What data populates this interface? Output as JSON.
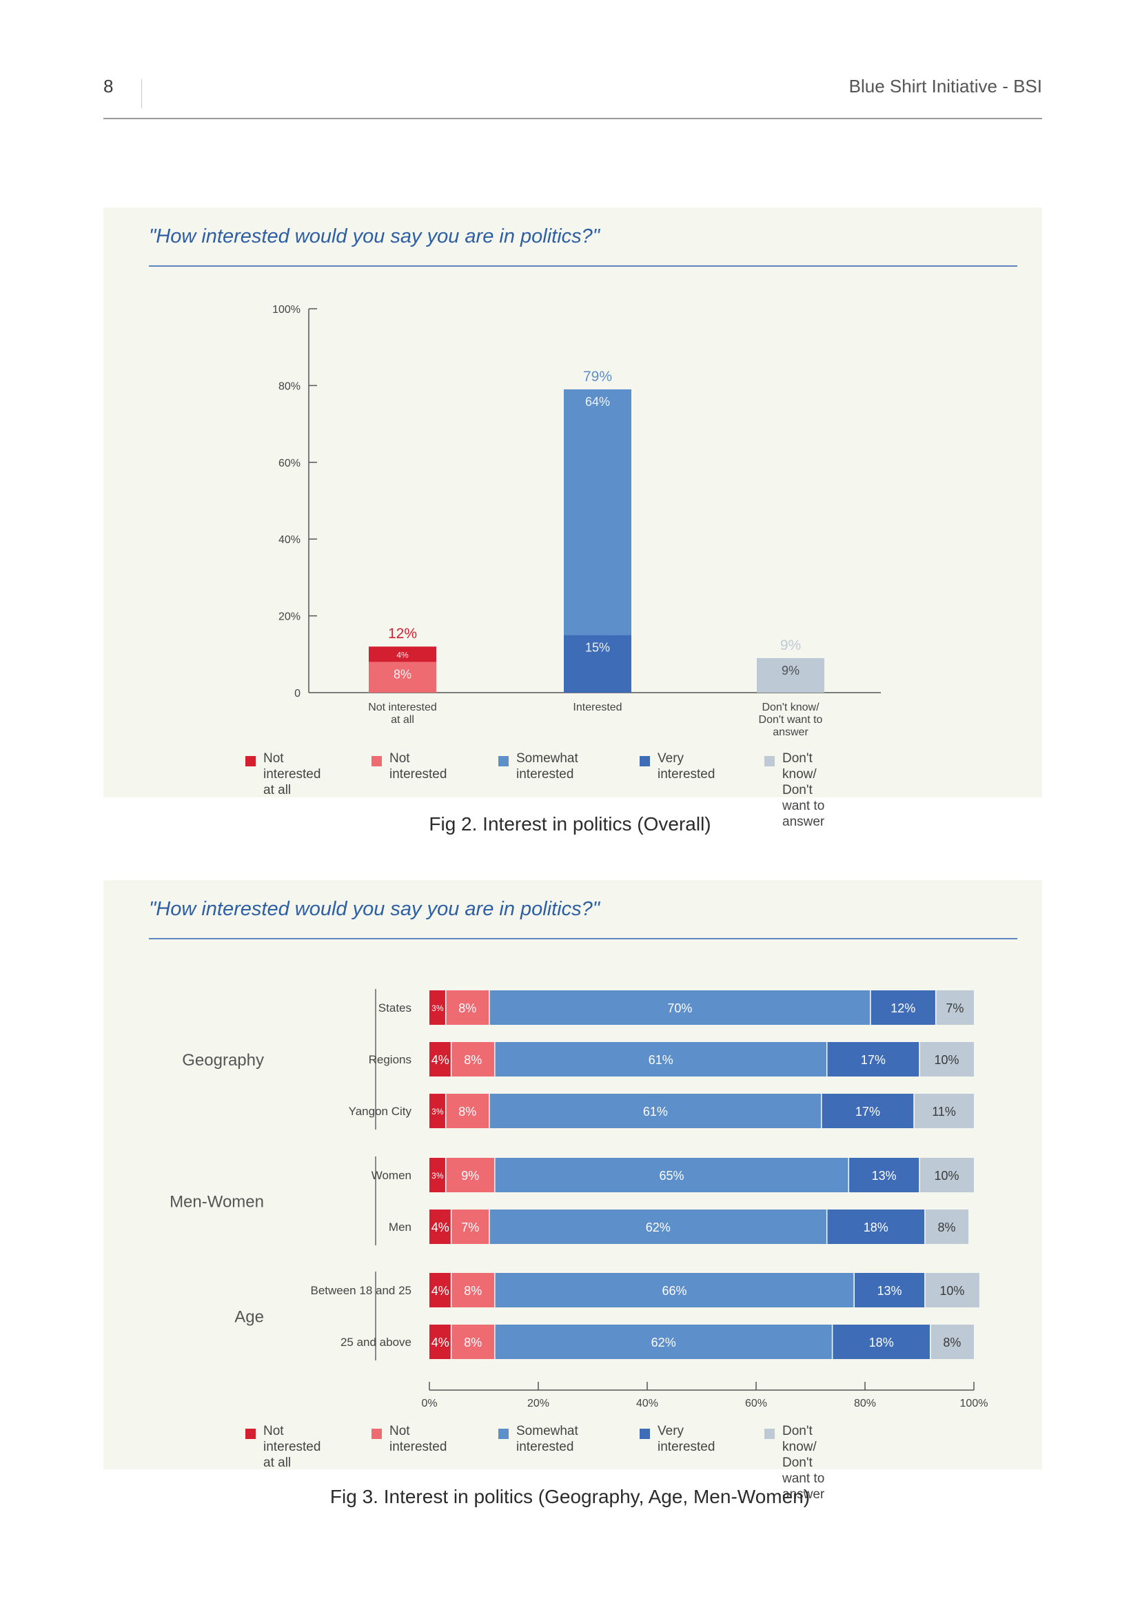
{
  "page": {
    "number": "8",
    "header_title": "Blue Shirt Initiative - BSI"
  },
  "colors": {
    "not_at_all": "#d41f30",
    "not_interested": "#ef6b72",
    "somewhat": "#5d8fca",
    "very": "#3f6cb6",
    "dont_know": "#bdcad6",
    "panel_bg": "#f5f6ee",
    "question": "#2d5fa5"
  },
  "figures": [
    {
      "question": "\"How interested would you say you are in politics?\"",
      "caption": "Fig 2. Interest in politics (Overall)"
    },
    {
      "question": "\"How interested would you say you are in politics?\"",
      "caption": "Fig 3. Interest in politics (Geography, Age, Men-Women)"
    }
  ],
  "legend": [
    {
      "key": "not_at_all",
      "label": "Not interested\nat all"
    },
    {
      "key": "not_interested",
      "label": "Not\ninterested"
    },
    {
      "key": "somewhat",
      "label": "Somewhat interested"
    },
    {
      "key": "very",
      "label": "Very interested"
    },
    {
      "key": "dont_know",
      "label": "Don't know/ Don't\nwant to answer"
    }
  ],
  "chart_data": [
    {
      "type": "bar",
      "stacked": true,
      "orientation": "vertical",
      "title": "\"How interested would you say you are in politics?\"",
      "categories": [
        "Not interested\nat all",
        "Interested",
        "Don't know/\nDon't want to\nanswer"
      ],
      "ylim": [
        0,
        100
      ],
      "yticks": [
        "0",
        "20%",
        "40%",
        "60%",
        "80%",
        "100%"
      ],
      "ytick_values": [
        0,
        20,
        40,
        60,
        80,
        100
      ],
      "bars": [
        {
          "total_label": "12%",
          "total_color": "not_at_all",
          "segments": [
            {
              "key": "not_interested",
              "value": 8,
              "label": "8%"
            },
            {
              "key": "not_at_all",
              "value": 4,
              "label": "4%"
            }
          ]
        },
        {
          "total_label": "79%",
          "total_color": "somewhat",
          "segments": [
            {
              "key": "very",
              "value": 15,
              "label": "15%"
            },
            {
              "key": "somewhat",
              "value": 64,
              "label": "64%"
            }
          ]
        },
        {
          "total_label": "9%",
          "total_color": "dont_know",
          "segments": [
            {
              "key": "dont_know",
              "value": 9,
              "label": "9%"
            }
          ]
        }
      ],
      "grid": false
    },
    {
      "type": "bar",
      "stacked": true,
      "orientation": "horizontal",
      "title": "\"How interested would you say you are in politics?\"",
      "xlim": [
        0,
        100
      ],
      "xticks": [
        "0%",
        "20%",
        "40%",
        "60%",
        "80%",
        "100%"
      ],
      "xtick_values": [
        0,
        20,
        40,
        60,
        80,
        100
      ],
      "series_keys": [
        "not_at_all",
        "not_interested",
        "somewhat",
        "very",
        "dont_know"
      ],
      "groups": [
        {
          "name": "Geography",
          "rows": [
            {
              "label": "States",
              "values": [
                3,
                8,
                70,
                12,
                7
              ],
              "labels": [
                "3%",
                "8%",
                "70%",
                "12%",
                "7%"
              ]
            },
            {
              "label": "Regions",
              "values": [
                4,
                8,
                61,
                17,
                10
              ],
              "labels": [
                "4%",
                "8%",
                "61%",
                "17%",
                "10%"
              ]
            },
            {
              "label": "Yangon City",
              "values": [
                3,
                8,
                61,
                17,
                11
              ],
              "labels": [
                "3%",
                "8%",
                "61%",
                "17%",
                "11%"
              ]
            }
          ]
        },
        {
          "name": "Men-Women",
          "rows": [
            {
              "label": "Women",
              "values": [
                3,
                9,
                65,
                13,
                10
              ],
              "labels": [
                "3%",
                "9%",
                "65%",
                "13%",
                "10%"
              ]
            },
            {
              "label": "Men",
              "values": [
                4,
                7,
                62,
                18,
                8
              ],
              "labels": [
                "4%",
                "7%",
                "62%",
                "18%",
                "8%"
              ]
            }
          ]
        },
        {
          "name": "Age",
          "rows": [
            {
              "label": "Between 18 and 25",
              "values": [
                4,
                8,
                66,
                13,
                10
              ],
              "labels": [
                "4%",
                "8%",
                "66%",
                "13%",
                "10%"
              ]
            },
            {
              "label": "25 and above",
              "values": [
                4,
                8,
                62,
                18,
                8
              ],
              "labels": [
                "4%",
                "8%",
                "62%",
                "18%",
                "8%"
              ]
            }
          ]
        }
      ],
      "grid": false
    }
  ]
}
